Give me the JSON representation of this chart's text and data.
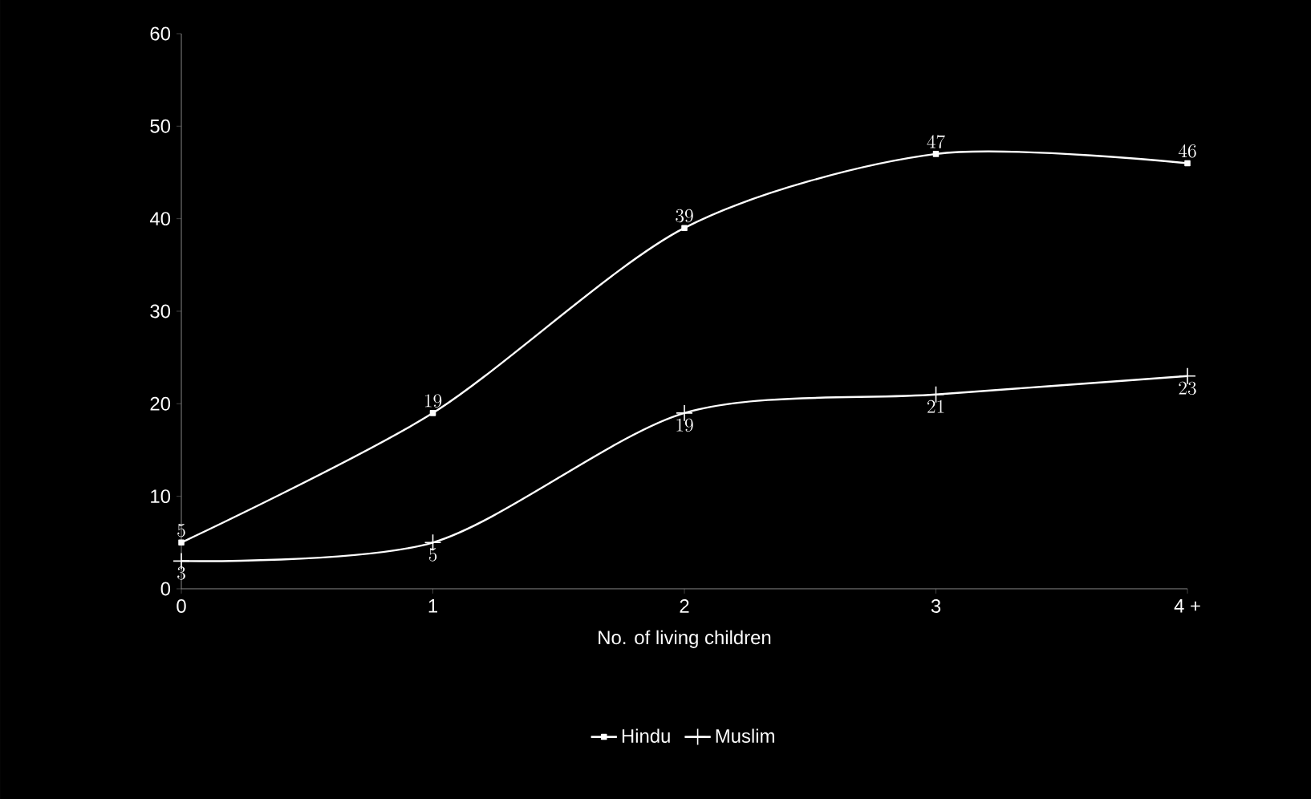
{
  "chart_data": {
    "type": "line",
    "xlabel": "No. of living children",
    "categories": [
      "0",
      "1",
      "2",
      "3",
      "4 +"
    ],
    "series": [
      {
        "name": "Hindu",
        "color": "#ffffff",
        "marker": "square",
        "values": [
          5,
          19,
          39,
          47,
          46
        ]
      },
      {
        "name": "Muslim",
        "color": "#ffffff",
        "marker": "cross",
        "values": [
          3,
          5,
          19,
          21,
          23
        ]
      }
    ],
    "ylim": [
      0,
      60
    ],
    "yticks": [
      0,
      10,
      20,
      30,
      40,
      50,
      60
    ],
    "data_labels": true,
    "legend": "bottom",
    "grid": false
  }
}
